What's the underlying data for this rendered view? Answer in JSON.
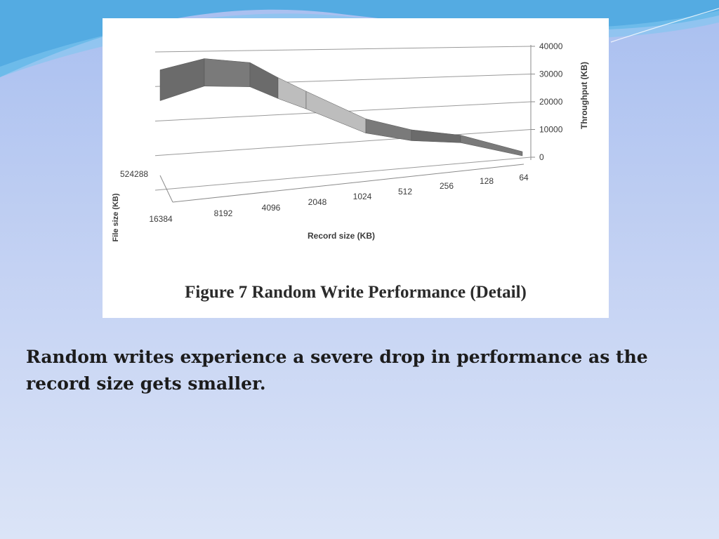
{
  "slide": {
    "body_text": "Random writes experience a severe drop in performance as the record size gets smaller."
  },
  "colors": {
    "background_top": "#a9bff0",
    "background_bottom": "#dbe4f7",
    "swoosh": "#4aa8e0",
    "surface_dark": "#6b6b6b",
    "surface_light": "#bdbdbd"
  },
  "chart_data": {
    "type": "surface",
    "caption": "Figure 7 Random Write Performance (Detail)",
    "xlabel": "Record size (KB)",
    "ylabel": "File size (KB)",
    "zlabel": "Throughput (KB)",
    "x_categories": [
      "16384",
      "8192",
      "4096",
      "2048",
      "1024",
      "512",
      "256",
      "128",
      "64"
    ],
    "y_categories": [
      "524288"
    ],
    "z_ticks": [
      "0",
      "10000",
      "20000",
      "30000",
      "40000"
    ],
    "zlim": [
      0,
      40000
    ],
    "grid": true,
    "series": [
      {
        "file_size": "524288",
        "values": [
          31000,
          35000,
          33500,
          28000,
          23000,
          13000,
          9000,
          7000,
          1000
        ]
      }
    ]
  }
}
